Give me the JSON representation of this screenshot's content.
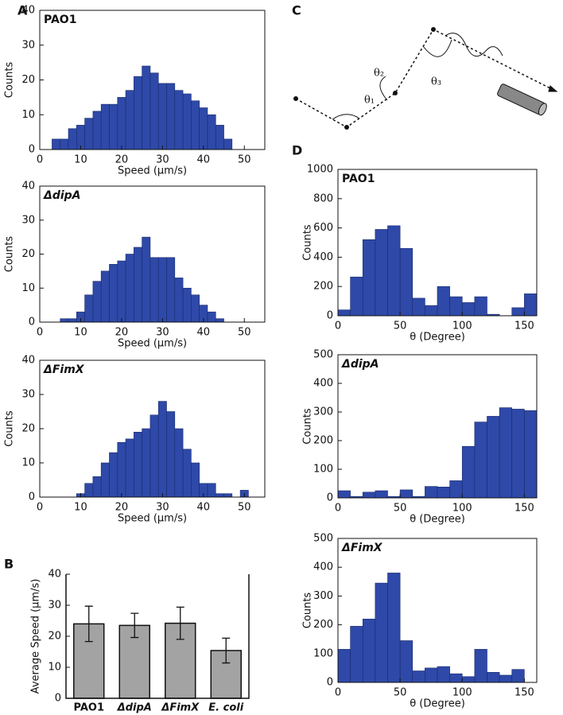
{
  "panel_labels": [
    "A",
    "B",
    "C",
    "D"
  ],
  "diagram": {
    "angle_labels": [
      "θ₁",
      "θ₂",
      "θ₃"
    ]
  },
  "chart_data": [
    {
      "type": "histogram",
      "title": "PAO1",
      "xlabel": "Speed (μm/s)",
      "ylabel": "Counts",
      "color": "#2e49a8",
      "bins": [
        3,
        5,
        7,
        9,
        11,
        13,
        15,
        17,
        19,
        21,
        23,
        25,
        27,
        29,
        31,
        33,
        35,
        37,
        39,
        41,
        43,
        45,
        47
      ],
      "counts": [
        3,
        3,
        6,
        7,
        9,
        11,
        13,
        13,
        15,
        17,
        21,
        24,
        22,
        19,
        19,
        17,
        16,
        14,
        12,
        10,
        7,
        3
      ],
      "xlim": [
        0,
        55
      ],
      "ylim": [
        0,
        40
      ],
      "xticks": [
        0,
        10,
        20,
        30,
        40,
        50
      ],
      "yticks": [
        0,
        10,
        20,
        30,
        40
      ]
    },
    {
      "type": "histogram",
      "title": "ΔdipA",
      "xlabel": "Speed (μm/s)",
      "ylabel": "Counts",
      "color": "#2e49a8",
      "bins": [
        5,
        7,
        9,
        11,
        13,
        15,
        17,
        19,
        21,
        23,
        25,
        27,
        29,
        31,
        33,
        35,
        37,
        39,
        41,
        43,
        45
      ],
      "counts": [
        1,
        1,
        3,
        8,
        12,
        15,
        17,
        18,
        20,
        22,
        25,
        19,
        19,
        19,
        13,
        10,
        8,
        5,
        3,
        1
      ],
      "xlim": [
        0,
        55
      ],
      "ylim": [
        0,
        40
      ],
      "xticks": [
        0,
        10,
        20,
        30,
        40,
        50
      ],
      "yticks": [
        0,
        10,
        20,
        30,
        40
      ]
    },
    {
      "type": "histogram",
      "title": "ΔFimX",
      "xlabel": "Speed (μm/s)",
      "ylabel": "Counts",
      "color": "#2e49a8",
      "bins": [
        9,
        11,
        13,
        15,
        17,
        19,
        21,
        23,
        25,
        27,
        29,
        31,
        33,
        35,
        37,
        39,
        41,
        43,
        45,
        47,
        49,
        51
      ],
      "counts": [
        1,
        4,
        6,
        10,
        13,
        16,
        17,
        19,
        20,
        24,
        28,
        25,
        20,
        14,
        10,
        4,
        4,
        1,
        1,
        0,
        2
      ],
      "xlim": [
        0,
        55
      ],
      "ylim": [
        0,
        40
      ],
      "xticks": [
        0,
        10,
        20,
        30,
        40,
        50
      ],
      "yticks": [
        0,
        10,
        20,
        30,
        40
      ]
    },
    {
      "type": "bar",
      "ylabel": "Average Speed (μm/s)",
      "color": "#a3a3a3",
      "categories": [
        "PAO1",
        "ΔdipA",
        "ΔFimX",
        "E. coli"
      ],
      "values": [
        24,
        23.5,
        24.2,
        15.4
      ],
      "errors": [
        5.7,
        3.9,
        5.2,
        4
      ],
      "ylim": [
        0,
        40
      ],
      "yticks": [
        0,
        10,
        20,
        30,
        40
      ]
    },
    {
      "type": "histogram",
      "title": "PAO1",
      "xlabel": "θ (Degree)",
      "ylabel": "Counts",
      "color": "#2e49a8",
      "bins": [
        0,
        10,
        20,
        30,
        40,
        50,
        60,
        70,
        80,
        90,
        100,
        110,
        120,
        130,
        140,
        150,
        160
      ],
      "counts": [
        40,
        265,
        520,
        590,
        615,
        460,
        120,
        70,
        200,
        130,
        90,
        130,
        10,
        0,
        55,
        150
      ],
      "xlim": [
        0,
        160
      ],
      "ylim": [
        0,
        1000
      ],
      "xticks": [
        0,
        50,
        100,
        150
      ],
      "yticks": [
        0,
        200,
        400,
        600,
        800,
        1000
      ]
    },
    {
      "type": "histogram",
      "title": "ΔdipA",
      "xlabel": "θ (Degree)",
      "ylabel": "Counts",
      "color": "#2e49a8",
      "bins": [
        0,
        10,
        20,
        30,
        40,
        50,
        60,
        70,
        80,
        90,
        100,
        110,
        120,
        130,
        140,
        150,
        160
      ],
      "counts": [
        25,
        5,
        20,
        25,
        5,
        28,
        5,
        40,
        38,
        60,
        180,
        265,
        285,
        315,
        310,
        305
      ],
      "xlim": [
        0,
        160
      ],
      "ylim": [
        0,
        500
      ],
      "xticks": [
        0,
        50,
        100,
        150
      ],
      "yticks": [
        0,
        100,
        200,
        300,
        400,
        500
      ]
    },
    {
      "type": "histogram",
      "title": "ΔFimX",
      "xlabel": "θ (Degree)",
      "ylabel": "Counts",
      "color": "#2e49a8",
      "bins": [
        0,
        10,
        20,
        30,
        40,
        50,
        60,
        70,
        80,
        90,
        100,
        110,
        120,
        130,
        140,
        150,
        160
      ],
      "counts": [
        115,
        195,
        220,
        345,
        380,
        145,
        40,
        50,
        55,
        30,
        20,
        115,
        35,
        25,
        45,
        0
      ],
      "xlim": [
        0,
        160
      ],
      "ylim": [
        0,
        500
      ],
      "xticks": [
        0,
        50,
        100,
        150
      ],
      "yticks": [
        0,
        100,
        200,
        300,
        400,
        500
      ]
    }
  ]
}
